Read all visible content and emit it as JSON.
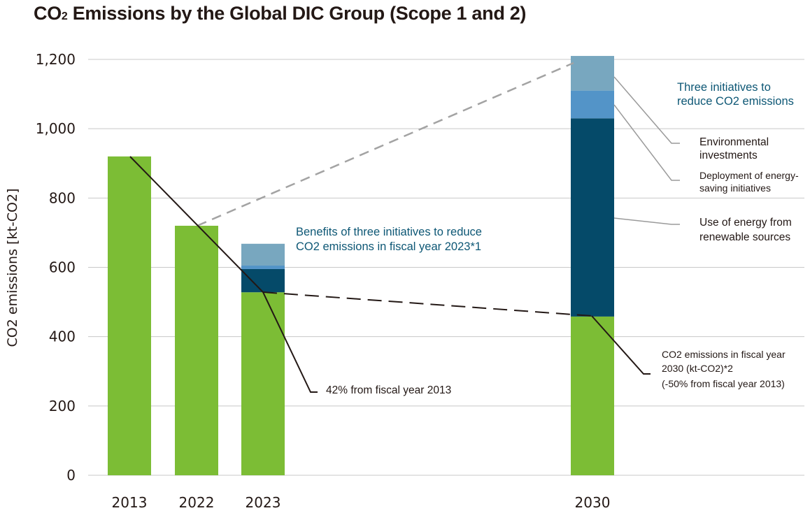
{
  "title": {
    "prefix": "CO",
    "sub": "2",
    "rest": " Emissions by the Global DIC Group (Scope 1 and 2)"
  },
  "chart_data": {
    "type": "bar",
    "title": "CO2 Emissions by the Global DIC Group (Scope 1 and 2)",
    "ylabel": "CO2 emissions [kt-CO2]",
    "ylim": [
      0,
      1200
    ],
    "yticks": [
      0,
      200,
      400,
      600,
      800,
      1000,
      1200
    ],
    "ytick_labels": [
      "0",
      "200",
      "400",
      "600",
      "800",
      "1,000",
      "1,200"
    ],
    "grid": true,
    "categories": [
      "2013",
      "2022",
      "2023",
      "2030"
    ],
    "series": [
      {
        "values": [
          920,
          720,
          528,
          458
        ],
        "color": "#7cbd35"
      },
      {
        "values": [
          0,
          0,
          67,
          572
        ],
        "color": "#054a69"
      },
      {
        "values": [
          0,
          0,
          10,
          80
        ],
        "color": "#5394c8"
      },
      {
        "values": [
          0,
          0,
          63,
          100
        ],
        "color": "#78a7bf"
      }
    ],
    "annotations": {
      "benefits_line1": "Benefits of three initiatives to reduce",
      "benefits_line2": "CO2 emissions in fiscal year 2023*1",
      "three_line1": "Three initiatives to",
      "three_line2": "reduce CO2 emissions",
      "env_line1": "Environmental",
      "env_line2": "investments",
      "deploy_line1": "Deployment of energy-",
      "deploy_line2": "saving initiatives",
      "renew_line1": "Use of energy from",
      "renew_line2": "renewable sources",
      "pct42": "42% from fiscal year 2013",
      "target_line1": "CO2 emissions in fiscal year",
      "target_line2": "2030 (kt-CO2)*2",
      "target_line3": "(-50% from fiscal year 2013)"
    }
  }
}
